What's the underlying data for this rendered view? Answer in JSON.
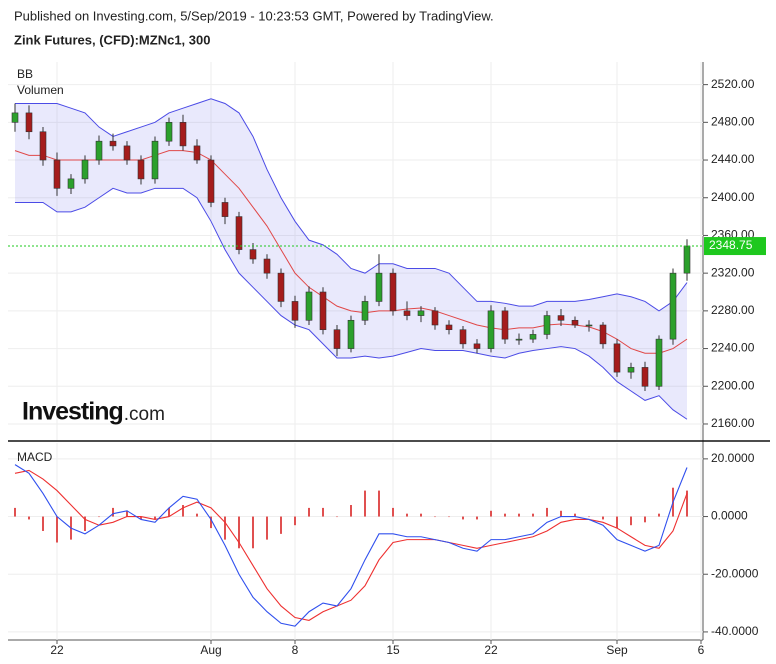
{
  "header": {
    "published": "Published on Investing.com, 5/Sep/2019 - 10:23:53 GMT, Powered by TradingView.",
    "instrument": "Zink Futures, (CFD):MZNc1, 300",
    "logo_bold": "Investing",
    "logo_suffix": ".com"
  },
  "chart_data": [
    {
      "type": "candlestick",
      "indicator_labels": [
        "BB",
        "Volumen"
      ],
      "open": [
        2480,
        2490,
        2470,
        2440,
        2410,
        2420,
        2440,
        2460,
        2455,
        2440,
        2420,
        2460,
        2480,
        2455,
        2440,
        2395,
        2380,
        2345,
        2335,
        2320,
        2290,
        2270,
        2300,
        2260,
        2240,
        2270,
        2290,
        2320,
        2280,
        2275,
        2280,
        2265,
        2260,
        2245,
        2240,
        2280,
        2250,
        2250,
        2255,
        2275,
        2270,
        2265,
        2265,
        2245,
        2215,
        2220,
        2200,
        2250,
        2320,
        null
      ],
      "high": [
        2500,
        2498,
        2475,
        2448,
        2425,
        2445,
        2466,
        2468,
        2460,
        2445,
        2465,
        2485,
        2488,
        2462,
        2445,
        2400,
        2385,
        2352,
        2340,
        2325,
        2296,
        2306,
        2305,
        2265,
        2275,
        2296,
        2340,
        2325,
        2290,
        2285,
        2284,
        2270,
        2264,
        2250,
        2286,
        2284,
        2256,
        2260,
        2280,
        2282,
        2274,
        2270,
        2268,
        2250,
        2225,
        2226,
        2254,
        2325,
        2356,
        null
      ],
      "low": [
        2470,
        2462,
        2434,
        2402,
        2404,
        2415,
        2435,
        2450,
        2435,
        2414,
        2415,
        2455,
        2450,
        2436,
        2390,
        2372,
        2340,
        2330,
        2314,
        2284,
        2262,
        2265,
        2255,
        2232,
        2236,
        2265,
        2285,
        2275,
        2270,
        2268,
        2260,
        2255,
        2240,
        2235,
        2236,
        2245,
        2244,
        2246,
        2250,
        2264,
        2262,
        2258,
        2240,
        2210,
        2208,
        2195,
        2196,
        2244,
        2312,
        null
      ],
      "close": [
        2490,
        2470,
        2440,
        2410,
        2420,
        2440,
        2460,
        2455,
        2440,
        2420,
        2460,
        2480,
        2455,
        2440,
        2395,
        2380,
        2345,
        2335,
        2320,
        2290,
        2270,
        2300,
        2260,
        2240,
        2270,
        2290,
        2320,
        2280,
        2275,
        2280,
        2265,
        2260,
        2245,
        2240,
        2280,
        2250,
        2250,
        2255,
        2275,
        2270,
        2265,
        2265,
        2245,
        2215,
        2220,
        2200,
        2250,
        2320,
        2348.75,
        null
      ],
      "bb_upper": [
        2500,
        2500,
        2500,
        2500,
        2495,
        2490,
        2475,
        2465,
        2470,
        2475,
        2480,
        2490,
        2495,
        2500,
        2505,
        2500,
        2490,
        2465,
        2430,
        2400,
        2375,
        2355,
        2350,
        2340,
        2325,
        2320,
        2330,
        2330,
        2325,
        2325,
        2325,
        2320,
        2305,
        2290,
        2290,
        2288,
        2285,
        2285,
        2290,
        2290,
        2290,
        2292,
        2295,
        2298,
        2295,
        2290,
        2280,
        2290,
        2310,
        null
      ],
      "bb_middle": [
        2450,
        2445,
        2445,
        2440,
        2440,
        2440,
        2440,
        2440,
        2440,
        2440,
        2445,
        2450,
        2450,
        2448,
        2440,
        2425,
        2410,
        2390,
        2370,
        2345,
        2320,
        2305,
        2295,
        2285,
        2280,
        2278,
        2280,
        2280,
        2282,
        2283,
        2280,
        2275,
        2270,
        2265,
        2262,
        2260,
        2262,
        2262,
        2265,
        2266,
        2265,
        2263,
        2258,
        2250,
        2240,
        2235,
        2235,
        2240,
        2250,
        null
      ],
      "bb_lower": [
        2395,
        2395,
        2395,
        2385,
        2385,
        2390,
        2400,
        2410,
        2405,
        2405,
        2410,
        2410,
        2410,
        2400,
        2375,
        2345,
        2320,
        2305,
        2290,
        2275,
        2265,
        2260,
        2245,
        2230,
        2230,
        2232,
        2230,
        2232,
        2236,
        2240,
        2238,
        2238,
        2238,
        2235,
        2232,
        2230,
        2235,
        2238,
        2240,
        2242,
        2240,
        2232,
        2220,
        2205,
        2195,
        2185,
        2190,
        2175,
        2165,
        null
      ],
      "up_color": "#2ca02c",
      "down_color": "#a51c1c",
      "band_color": "#4b4be6",
      "middle_color": "#e04848",
      "last_price": 2348.75,
      "last_price_color": "#1ec81e",
      "ylim": [
        2143,
        2544
      ],
      "yticks": [
        {
          "value": 2160,
          "label": "2160.00"
        },
        {
          "value": 2200,
          "label": "2200.00"
        },
        {
          "value": 2240,
          "label": "2240.00"
        },
        {
          "value": 2280,
          "label": "2280.00"
        },
        {
          "value": 2320,
          "label": "2320.00"
        },
        {
          "value": 2360,
          "label": "2360.00"
        },
        {
          "value": 2400,
          "label": "2400.00"
        },
        {
          "value": 2440,
          "label": "2440.00"
        },
        {
          "value": 2480,
          "label": "2480.00"
        },
        {
          "value": 2520,
          "label": "2520.00"
        }
      ],
      "grid": true
    },
    {
      "type": "line",
      "title": "MACD",
      "categories": [
        null,
        null,
        null,
        "22",
        null,
        null,
        null,
        null,
        null,
        null,
        null,
        null,
        null,
        null,
        "Aug",
        null,
        null,
        null,
        null,
        null,
        "8",
        null,
        null,
        null,
        null,
        null,
        null,
        "15",
        null,
        null,
        null,
        null,
        null,
        null,
        "22",
        null,
        null,
        null,
        null,
        null,
        null,
        null,
        null,
        "Sep",
        null,
        null,
        null,
        null,
        null,
        "6"
      ],
      "macd": [
        18,
        15,
        8,
        0,
        -4,
        -6,
        -3,
        1,
        2,
        -1,
        -2,
        3,
        7,
        6,
        -1,
        -10,
        -20,
        -28,
        -33,
        -37,
        -38,
        -33,
        -30,
        -31,
        -25,
        -15,
        -6,
        -6,
        -7,
        -7,
        -8,
        -9,
        -11,
        -12,
        -8,
        -8,
        -7,
        -6,
        -2,
        0,
        0,
        -1,
        -3,
        -8,
        -10,
        -12,
        -10,
        5,
        17,
        null
      ],
      "signal": [
        15,
        16,
        13,
        9,
        4,
        -1,
        -3,
        -2,
        0,
        0,
        -1,
        0,
        3,
        5,
        3,
        -2,
        -9,
        -17,
        -25,
        -31,
        -35,
        -36,
        -33,
        -31,
        -29,
        -24,
        -15,
        -9,
        -8,
        -8,
        -8,
        -9,
        -10,
        -11,
        -10,
        -9,
        -8,
        -7,
        -5,
        -2,
        -1,
        -1,
        -2,
        -4,
        -7,
        -10,
        -11,
        -5,
        8,
        null
      ],
      "histogram": [
        3,
        -1,
        -5,
        -9,
        -8,
        -5,
        0,
        3,
        2,
        -1,
        -1,
        3,
        4,
        1,
        -4,
        -8,
        -11,
        -11,
        -8,
        -6,
        -3,
        3,
        3,
        0,
        4,
        9,
        9,
        3,
        1,
        1,
        0,
        0,
        -1,
        -1,
        2,
        1,
        1,
        1,
        3,
        2,
        1,
        0,
        -1,
        -4,
        -3,
        -2,
        1,
        10,
        9,
        null
      ],
      "macd_color": "#3050ee",
      "signal_color": "#ee3030",
      "histogram_color": "#e05050",
      "ylim": [
        -42.8,
        25.5
      ],
      "yticks": [
        {
          "value": -40,
          "label": "-40.0000"
        },
        {
          "value": -20,
          "label": "-20.0000"
        },
        {
          "value": 0,
          "label": "0.0000"
        },
        {
          "value": 20,
          "label": "20.0000"
        }
      ],
      "grid": true
    }
  ]
}
